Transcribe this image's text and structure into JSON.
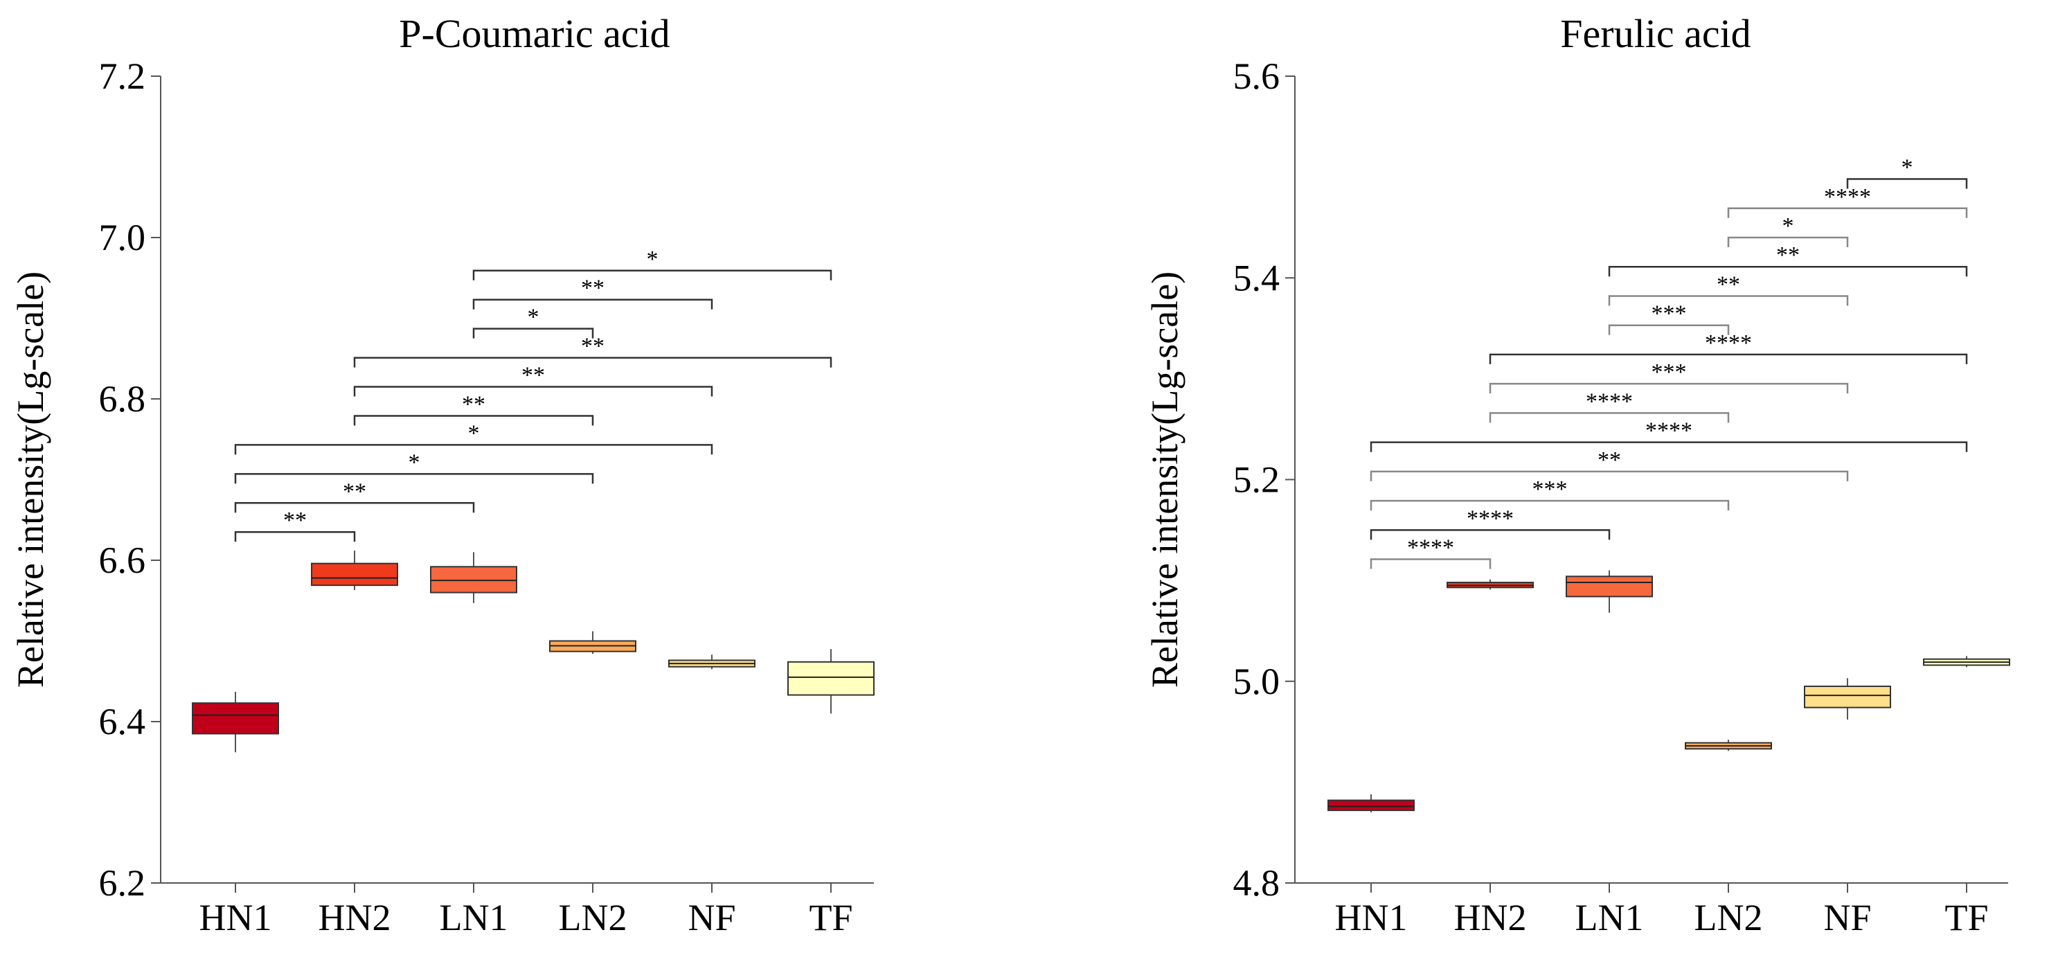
{
  "chart_data": [
    {
      "type": "box",
      "title": "P-Coumaric acid",
      "ylabel": "Relative intensity(Lg-scale)",
      "xlabel": "",
      "ylim": [
        6.2,
        7.2
      ],
      "yticks": [
        6.2,
        6.4,
        6.6,
        6.8,
        7.0,
        7.2
      ],
      "ytick_labels": [
        "6.2",
        "6.4",
        "6.6",
        "6.8",
        "7.0",
        "7.2"
      ],
      "categories": [
        "HN1",
        "HN2",
        "LN1",
        "LN2",
        "NF",
        "TF"
      ],
      "colors": [
        "#c0001a",
        "#f03a1c",
        "#f7683e",
        "#fdaa58",
        "#fee08b",
        "#ffffc0"
      ],
      "boxes": [
        {
          "min": 6.362,
          "q1": 6.385,
          "median": 6.408,
          "q3": 6.423,
          "max": 6.437
        },
        {
          "min": 6.563,
          "q1": 6.569,
          "median": 6.578,
          "q3": 6.596,
          "max": 6.612
        },
        {
          "min": 6.547,
          "q1": 6.56,
          "median": 6.575,
          "q3": 6.592,
          "max": 6.61
        },
        {
          "min": 6.484,
          "q1": 6.487,
          "median": 6.494,
          "q3": 6.5,
          "max": 6.512
        },
        {
          "min": 6.465,
          "q1": 6.468,
          "median": 6.472,
          "q3": 6.476,
          "max": 6.483
        },
        {
          "min": 6.41,
          "q1": 6.433,
          "median": 6.455,
          "q3": 6.474,
          "max": 6.49
        }
      ],
      "significance": [
        {
          "from": 0,
          "to": 1,
          "y": 6.635,
          "label": "**"
        },
        {
          "from": 0,
          "to": 2,
          "y": 6.671,
          "label": "**"
        },
        {
          "from": 0,
          "to": 3,
          "y": 6.707,
          "label": "*"
        },
        {
          "from": 0,
          "to": 4,
          "y": 6.743,
          "label": "*"
        },
        {
          "from": 1,
          "to": 3,
          "y": 6.779,
          "label": "**"
        },
        {
          "from": 1,
          "to": 4,
          "y": 6.815,
          "label": "**"
        },
        {
          "from": 1,
          "to": 5,
          "y": 6.851,
          "label": "**"
        },
        {
          "from": 2,
          "to": 3,
          "y": 6.887,
          "label": "*"
        },
        {
          "from": 2,
          "to": 4,
          "y": 6.923,
          "label": "**"
        },
        {
          "from": 2,
          "to": 5,
          "y": 6.959,
          "label": "*"
        }
      ]
    },
    {
      "type": "box",
      "title": "Ferulic acid",
      "ylabel": "Relative intensity(Lg-scale)",
      "xlabel": "",
      "ylim": [
        4.8,
        5.6
      ],
      "yticks": [
        4.8,
        5.0,
        5.2,
        5.4,
        5.6
      ],
      "ytick_labels": [
        "4.8",
        "5.0",
        "5.2",
        "5.4",
        "5.6"
      ],
      "categories": [
        "HN1",
        "HN2",
        "LN1",
        "LN2",
        "NF",
        "TF"
      ],
      "colors": [
        "#c0001a",
        "#f03a1c",
        "#f7683e",
        "#fdaa58",
        "#fee08b",
        "#ffffc0"
      ],
      "boxes": [
        {
          "min": 4.87,
          "q1": 4.872,
          "median": 4.876,
          "q3": 4.882,
          "max": 4.888
        },
        {
          "min": 5.091,
          "q1": 5.093,
          "median": 5.095,
          "q3": 5.098,
          "max": 5.101
        },
        {
          "min": 5.068,
          "q1": 5.084,
          "median": 5.098,
          "q3": 5.104,
          "max": 5.11
        },
        {
          "min": 4.931,
          "q1": 4.933,
          "median": 4.936,
          "q3": 4.939,
          "max": 4.942
        },
        {
          "min": 4.962,
          "q1": 4.974,
          "median": 4.986,
          "q3": 4.995,
          "max": 5.003
        },
        {
          "min": 5.014,
          "q1": 5.016,
          "median": 5.019,
          "q3": 5.022,
          "max": 5.025
        }
      ],
      "significance": [
        {
          "from": 0,
          "to": 1,
          "y": 5.121,
          "label": "****"
        },
        {
          "from": 0,
          "to": 2,
          "y": 5.15,
          "label": "****"
        },
        {
          "from": 0,
          "to": 3,
          "y": 5.179,
          "label": "***"
        },
        {
          "from": 0,
          "to": 4,
          "y": 5.208,
          "label": "**"
        },
        {
          "from": 0,
          "to": 5,
          "y": 5.237,
          "label": "****"
        },
        {
          "from": 1,
          "to": 3,
          "y": 5.266,
          "label": "****"
        },
        {
          "from": 1,
          "to": 4,
          "y": 5.295,
          "label": "***"
        },
        {
          "from": 1,
          "to": 5,
          "y": 5.324,
          "label": "****"
        },
        {
          "from": 2,
          "to": 3,
          "y": 5.353,
          "label": "***"
        },
        {
          "from": 2,
          "to": 4,
          "y": 5.382,
          "label": "**"
        },
        {
          "from": 2,
          "to": 5,
          "y": 5.411,
          "label": "**"
        },
        {
          "from": 3,
          "to": 4,
          "y": 5.44,
          "label": "*"
        },
        {
          "from": 3,
          "to": 5,
          "y": 5.469,
          "label": "****"
        },
        {
          "from": 4,
          "to": 5,
          "y": 5.498,
          "label": "*"
        }
      ]
    }
  ]
}
